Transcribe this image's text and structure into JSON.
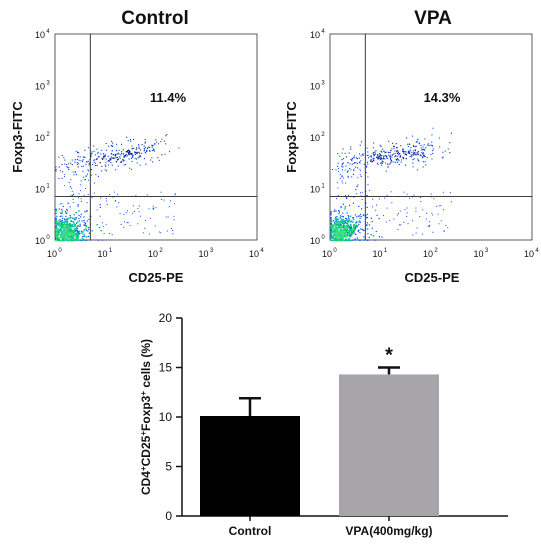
{
  "chart_data": [
    {
      "type": "scatter",
      "title": "Control",
      "xlabel": "CD25-PE",
      "ylabel": "Foxp3-FITC",
      "scale": "log",
      "xlim": [
        1,
        10000
      ],
      "ylim": [
        1,
        10000
      ],
      "x_ticks": [
        "10",
        "10",
        "10",
        "10",
        "10"
      ],
      "x_tick_exponents": [
        "0",
        "1",
        "2",
        "3",
        "4"
      ],
      "y_ticks": [
        "10",
        "10",
        "10",
        "10",
        "10"
      ],
      "y_tick_exponents": [
        "0",
        "1",
        "2",
        "3",
        "4"
      ],
      "gate": {
        "x": 5,
        "y": 7
      },
      "upper_right_percent": "11.4%",
      "density_colors": [
        "#00d070",
        "#0050ff",
        "#1a2a8a"
      ]
    },
    {
      "type": "scatter",
      "title": "VPA",
      "xlabel": "CD25-PE",
      "ylabel": "Foxp3-FITC",
      "scale": "log",
      "xlim": [
        1,
        10000
      ],
      "ylim": [
        1,
        10000
      ],
      "x_ticks": [
        "10",
        "10",
        "10",
        "10",
        "10"
      ],
      "x_tick_exponents": [
        "0",
        "1",
        "2",
        "3",
        "4"
      ],
      "y_ticks": [
        "10",
        "10",
        "10",
        "10",
        "10"
      ],
      "y_tick_exponents": [
        "0",
        "1",
        "2",
        "3",
        "4"
      ],
      "gate": {
        "x": 5,
        "y": 7
      },
      "upper_right_percent": "14.3%",
      "density_colors": [
        "#00d070",
        "#0050ff",
        "#1a2a8a"
      ]
    },
    {
      "type": "bar",
      "categories": [
        "Control",
        "VPA(400mg/kg)"
      ],
      "values": [
        10.1,
        14.3
      ],
      "errors": [
        1.8,
        0.7
      ],
      "colors": [
        "#000000",
        "#a7a5aa"
      ],
      "significance": [
        "",
        "*"
      ],
      "ylabel_parts": {
        "cd4": "CD4",
        "cd4_sup": "+",
        "cd25": "CD25",
        "cd25_sup": "+",
        "foxp3": "Foxp3",
        "foxp3_sup": "+",
        "rest": " cells (%)"
      },
      "ylim": [
        0,
        20
      ],
      "yticks": [
        "0",
        "5",
        "10",
        "15",
        "20"
      ],
      "ytick_values": [
        0,
        5,
        10,
        15,
        20
      ]
    }
  ]
}
